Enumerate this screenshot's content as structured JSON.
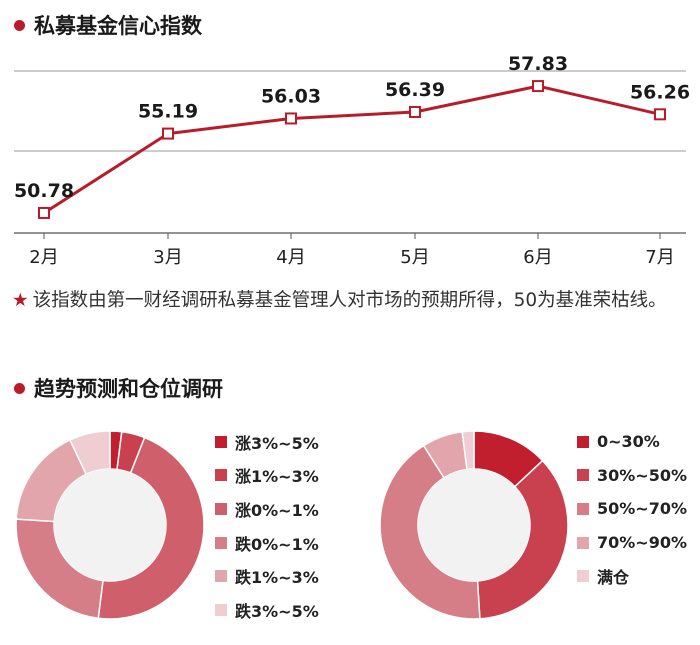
{
  "section1": {
    "title": "私募基金信心指数"
  },
  "section2": {
    "title": "趋势预测和仓位调研"
  },
  "note": {
    "star": "★",
    "text": "该指数由第一财经调研私募基金管理人对市场的预期所得，50为基准荣枯线。"
  },
  "chart_data": [
    {
      "type": "line",
      "title": "私募基金信心指数",
      "categories": [
        "2月",
        "3月",
        "4月",
        "5月",
        "6月",
        "7月"
      ],
      "series": [
        {
          "values": [
            50.78,
            55.19,
            56.03,
            56.39,
            57.83,
            56.26
          ]
        }
      ],
      "value_labels": [
        "50.78",
        "55.19",
        "56.03",
        "56.39",
        "57.83",
        "56.26"
      ],
      "ylim": [
        49,
        59
      ],
      "grid": true,
      "color": "#b81c2b"
    },
    {
      "type": "pie",
      "title": "趋势预测",
      "labels": [
        "涨3%~5%",
        "涨1%~3%",
        "涨0%~1%",
        "跌0%~1%",
        "跌1%~3%",
        "跌3%~5%"
      ],
      "values": [
        2,
        4,
        46,
        24,
        17,
        7
      ],
      "colors": [
        "#c11f2e",
        "#c9414f",
        "#cf606b",
        "#d67e87",
        "#e2a5ab",
        "#efcdd0"
      ]
    },
    {
      "type": "pie",
      "title": "仓位调研",
      "labels": [
        "0~30%",
        "30%~50%",
        "50%~70%",
        "70%~90%",
        "满仓"
      ],
      "values": [
        13,
        36,
        42,
        7,
        2
      ],
      "colors": [
        "#c11f2e",
        "#c9414f",
        "#d67e87",
        "#e2a5ab",
        "#efcdd0"
      ]
    }
  ]
}
